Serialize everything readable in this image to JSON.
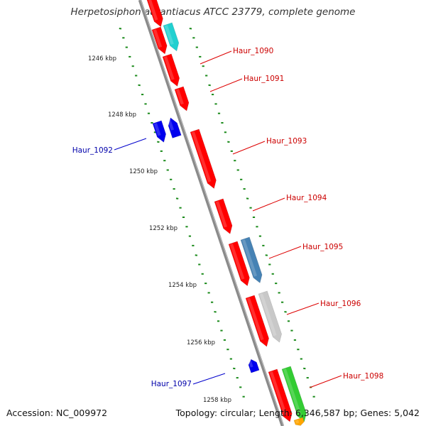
{
  "title": "Herpetosiphon aurantiacus ATCC 23779, complete genome",
  "footer": {
    "accession": "Accession: NC_009972",
    "summary": "Topology: circular; Length: 6,346,587 bp; Genes: 5,042"
  },
  "colors": {
    "backbone": "#8a8a8a",
    "tick": "#1a8a1a",
    "forward_gene": "#ff0000",
    "reverse_gene": "#0000ee",
    "label_forward": "#cc0000",
    "label_reverse": "#0000aa",
    "teal": "#22d0d0",
    "steelblue": "#4682b4",
    "grey": "#c8c8c8",
    "green": "#33cc33",
    "orange": "#ffa500"
  },
  "scale": {
    "unit": "kbp",
    "ticks": [
      {
        "kbp": 1246,
        "label": "1246 kbp"
      },
      {
        "kbp": 1248,
        "label": "1248 kbp"
      },
      {
        "kbp": 1250,
        "label": "1250 kbp"
      },
      {
        "kbp": 1252,
        "label": "1252 kbp"
      },
      {
        "kbp": 1254,
        "label": "1254 kbp"
      },
      {
        "kbp": 1256,
        "label": "1256 kbp"
      },
      {
        "kbp": 1258,
        "label": "1258 kbp"
      }
    ]
  },
  "gene_labels": [
    {
      "text": "Haur_1090",
      "strand": "forward"
    },
    {
      "text": "Haur_1091",
      "strand": "forward"
    },
    {
      "text": "Haur_1092",
      "strand": "reverse"
    },
    {
      "text": "Haur_1093",
      "strand": "forward"
    },
    {
      "text": "Haur_1094",
      "strand": "forward"
    },
    {
      "text": "Haur_1095",
      "strand": "forward"
    },
    {
      "text": "Haur_1096",
      "strand": "forward"
    },
    {
      "text": "Haur_1097",
      "strand": "reverse"
    },
    {
      "text": "Haur_1098",
      "strand": "forward"
    }
  ]
}
